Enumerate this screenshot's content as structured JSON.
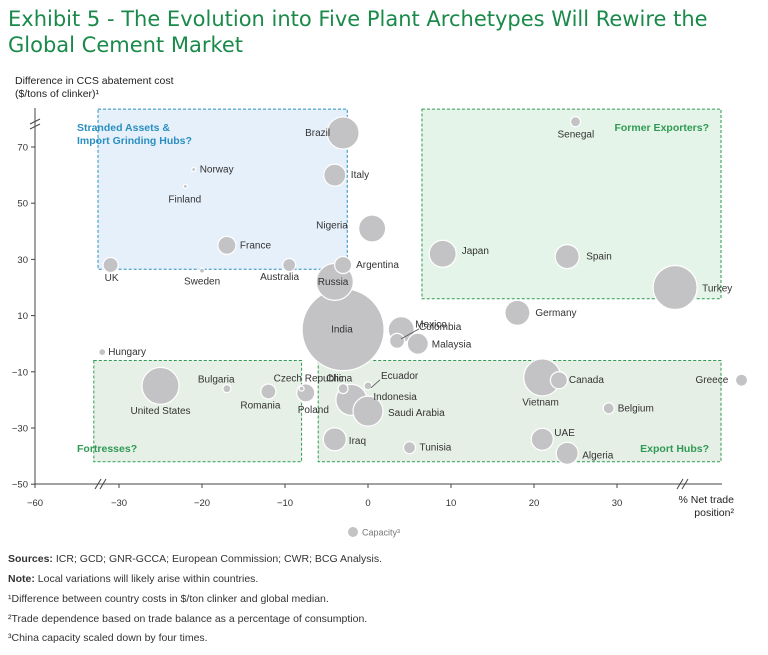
{
  "title": "Exhibit 5 - The Evolution into Five Plant Archetypes Will Rewire the Global Cement Market",
  "footnotes": {
    "sources_label": "Sources:",
    "sources_text": "ICR; GCD; GNR-GCCA; European Commission; CWR; BCG Analysis.",
    "note_label": "Note:",
    "note_text": "Local variations will likely arise within countries.",
    "fn1": "¹Difference between country costs in $/ton clinker and global median.",
    "fn2": "²Trade dependence based on trade balance as a percentage of consumption.",
    "fn3": "³China capacity scaled down by four times."
  },
  "chart_data": {
    "type": "scatter",
    "ylabel_line1": "Difference in CCS abatement cost",
    "ylabel_line2": "($/tons of clinker)¹",
    "xlabel_line1": "% Net trade",
    "xlabel_line2": "position²",
    "legend_label": "Capacity³",
    "xlim": [
      -60,
      45
    ],
    "ylim": [
      -50,
      80
    ],
    "x_ticks": [
      -60,
      -30,
      -20,
      -10,
      0,
      10,
      20,
      30
    ],
    "y_ticks": [
      70,
      50,
      30,
      10,
      -10,
      -30,
      -50
    ],
    "bubble_color": "#c3c3c5",
    "quadrants": [
      {
        "label_line1": "Stranded Assets &",
        "label_line2": "Import Grinding Hubs?",
        "color": "#2a8fc0",
        "fill": "#e6f0fa",
        "x0": -37.5,
        "x1": -2.5,
        "y0": 26.5,
        "y1": 83.5
      },
      {
        "label_line1": "Former Exporters?",
        "label_line2": "",
        "color": "#2f9a53",
        "fill": "#e5f4e8",
        "x0": 6.5,
        "x1": 45,
        "y0": 16,
        "y1": 83.5
      },
      {
        "label_line1": "Fortresses?",
        "label_line2": "",
        "color": "#2f9a53",
        "fill": "#e6f0e6",
        "x0": -39,
        "x1": -8,
        "y0": -42,
        "y1": -6
      },
      {
        "label_line1": "Export Hubs?",
        "label_line2": "",
        "color": "#2f9a53",
        "fill": "#e6efe6",
        "x0": -6,
        "x1": 45,
        "y0": -42,
        "y1": -6
      }
    ],
    "points": [
      {
        "name": "Brazil",
        "x": -3,
        "y": 75,
        "size": 3.2
      },
      {
        "name": "Senegal",
        "x": 25,
        "y": 79,
        "size": 1.0
      },
      {
        "name": "Norway",
        "x": -21,
        "y": 62,
        "size": 0.4
      },
      {
        "name": "Finland",
        "x": -22,
        "y": 56,
        "size": 0.4
      },
      {
        "name": "Italy",
        "x": -4,
        "y": 60,
        "size": 2.2
      },
      {
        "name": "Nigeria",
        "x": 0.5,
        "y": 41,
        "size": 2.7
      },
      {
        "name": "France",
        "x": -17,
        "y": 35,
        "size": 1.8
      },
      {
        "name": "Japan",
        "x": 9,
        "y": 32,
        "size": 2.7
      },
      {
        "name": "Spain",
        "x": 24,
        "y": 31,
        "size": 2.4
      },
      {
        "name": "UK",
        "x": -33,
        "y": 28,
        "size": 1.5
      },
      {
        "name": "Sweden",
        "x": -20,
        "y": 26,
        "size": 0.5
      },
      {
        "name": "Australia",
        "x": -9.5,
        "y": 28,
        "size": 1.3
      },
      {
        "name": "Argentina",
        "x": -3,
        "y": 28,
        "size": 1.7
      },
      {
        "name": "Turkey",
        "x": 37,
        "y": 20,
        "size": 4.4
      },
      {
        "name": "Russia",
        "x": -4,
        "y": 22,
        "size": 3.7
      },
      {
        "name": "Germany",
        "x": 18,
        "y": 11,
        "size": 2.5
      },
      {
        "name": "Mexico",
        "x": 4,
        "y": 5,
        "size": 2.6
      },
      {
        "name": "India",
        "x": -3,
        "y": 5,
        "size": 8.2
      },
      {
        "name": "Colombia",
        "x": 3.5,
        "y": 1,
        "size": 1.5
      },
      {
        "name": "Malaysia",
        "x": 6,
        "y": 0,
        "size": 2.1
      },
      {
        "name": "Hungary",
        "x": -36,
        "y": -3,
        "size": 0.7
      },
      {
        "name": "United States",
        "x": -25,
        "y": -15,
        "size": 3.7
      },
      {
        "name": "Bulgaria",
        "x": -17,
        "y": -16,
        "size": 0.8
      },
      {
        "name": "Romania",
        "x": -12,
        "y": -17,
        "size": 1.5
      },
      {
        "name": "Czech Republic",
        "x": -8,
        "y": -16,
        "size": 0.5
      },
      {
        "name": "Poland",
        "x": -7.5,
        "y": -17.5,
        "size": 1.8
      },
      {
        "name": "China",
        "x": -3,
        "y": -16,
        "size": 1.0
      },
      {
        "name": "Ecuador",
        "x": 0,
        "y": -15,
        "size": 0.8
      },
      {
        "name": "Indonesia",
        "x": -2,
        "y": -20,
        "size": 3.1
      },
      {
        "name": "Saudi Arabia",
        "x": 0,
        "y": -24,
        "size": 3.0
      },
      {
        "name": "Vietnam",
        "x": 21,
        "y": -12,
        "size": 3.7
      },
      {
        "name": "Canada",
        "x": 23,
        "y": -13,
        "size": 1.7
      },
      {
        "name": "Greece",
        "x": 45,
        "y": -13,
        "size": 1.2
      },
      {
        "name": "Belgium",
        "x": 29,
        "y": -23,
        "size": 1.1
      },
      {
        "name": "Iraq",
        "x": -4,
        "y": -34,
        "size": 2.3
      },
      {
        "name": "Tunisia",
        "x": 5,
        "y": -37,
        "size": 1.2
      },
      {
        "name": "UAE",
        "x": 21,
        "y": -34,
        "size": 2.2
      },
      {
        "name": "Algeria",
        "x": 24,
        "y": -39,
        "size": 2.2
      }
    ]
  }
}
